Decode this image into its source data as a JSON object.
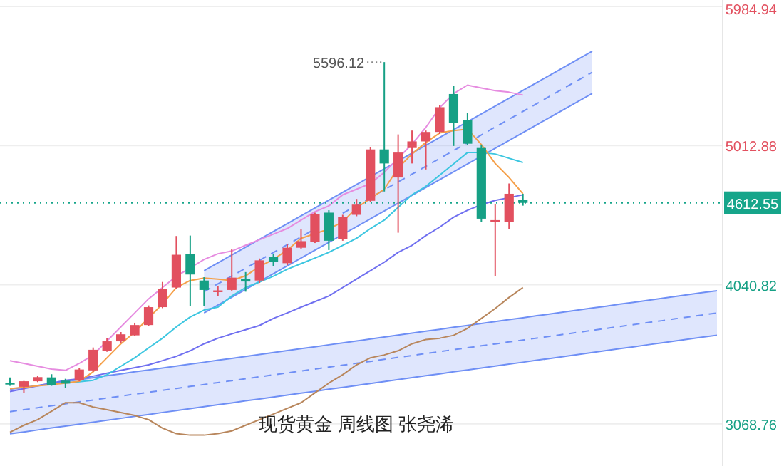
{
  "chart_data": {
    "type": "candlestick",
    "title": "现货黄金 周线图 张尧浠",
    "categories": [
      null,
      null,
      null,
      null,
      null,
      null,
      null,
      null,
      null,
      null,
      null,
      null,
      null,
      null,
      null,
      null,
      null,
      null,
      null,
      null,
      null,
      null,
      null,
      null,
      null,
      null,
      null,
      null,
      null,
      null,
      null,
      null,
      null,
      null,
      null,
      null,
      null,
      null,
      null,
      null,
      null,
      null,
      null,
      null,
      null,
      null,
      null,
      null,
      null,
      null,
      null,
      null
    ],
    "ohlc": [
      [
        3356,
        3393,
        3334,
        3343
      ],
      [
        3327,
        3368,
        3285,
        3366
      ],
      [
        3366,
        3405,
        3360,
        3395
      ],
      [
        3393,
        3415,
        3334,
        3340
      ],
      [
        3370,
        3383,
        3317,
        3350
      ],
      [
        3373,
        3458,
        3366,
        3448
      ],
      [
        3442,
        3602,
        3432,
        3586
      ],
      [
        3579,
        3667,
        3572,
        3645
      ],
      [
        3645,
        3710,
        3635,
        3694
      ],
      [
        3687,
        3775,
        3680,
        3759
      ],
      [
        3759,
        3896,
        3753,
        3884
      ],
      [
        3884,
        4060,
        3877,
        4011
      ],
      [
        4021,
        4381,
        4014,
        4250
      ],
      [
        4257,
        4384,
        3893,
        4112
      ],
      [
        4070,
        4093,
        3890,
        4004
      ],
      [
        3989,
        4031,
        3962,
        4001
      ],
      [
        4004,
        4289,
        3994,
        4090
      ],
      [
        4080,
        4129,
        3992,
        4063
      ],
      [
        4070,
        4224,
        4053,
        4211
      ],
      [
        4237,
        4257,
        4168,
        4201
      ],
      [
        4191,
        4322,
        4178,
        4299
      ],
      [
        4299,
        4430,
        4289,
        4345
      ],
      [
        4342,
        4544,
        4332,
        4532
      ],
      [
        4544,
        4561,
        4283,
        4348
      ],
      [
        4358,
        4529,
        4348,
        4512
      ],
      [
        4529,
        4640,
        4519,
        4600
      ],
      [
        4627,
        5003,
        4617,
        4986
      ],
      [
        4986,
        5596.12,
        4692,
        4888
      ],
      [
        4790,
        5091,
        4404,
        4964
      ],
      [
        4996,
        5118,
        4888,
        5042
      ],
      [
        5042,
        5118,
        4846,
        5108
      ],
      [
        5108,
        5298,
        5094,
        5281
      ],
      [
        5373,
        5428,
        5010,
        5173
      ],
      [
        5190,
        5239,
        5016,
        5026
      ],
      [
        4996,
        5020,
        4480,
        4502
      ],
      [
        4480,
        4603,
        4103,
        4492
      ],
      [
        4480,
        4748,
        4430,
        4676
      ],
      [
        4633,
        4676,
        4593,
        4612.55
      ],
      null,
      null,
      null,
      null,
      null,
      null,
      null,
      null,
      null,
      null,
      null,
      null,
      null,
      null
    ],
    "colors": [
      "#16a085",
      "#e2505f",
      "#e2505f",
      "#16a085",
      "#16a085",
      "#e2505f",
      "#e2505f",
      "#e2505f",
      "#e2505f",
      "#e2505f",
      "#e2505f",
      "#e2505f",
      "#e2505f",
      "#16a085",
      "#16a085",
      "#e2505f",
      "#e2505f",
      "#16a085",
      "#e2505f",
      "#16a085",
      "#e2505f",
      "#e2505f",
      "#e2505f",
      "#16a085",
      "#e2505f",
      "#e2505f",
      "#e2505f",
      "#16a085",
      "#e2505f",
      "#e2505f",
      "#e2505f",
      "#e2505f",
      "#16a085",
      "#16a085",
      "#16a085",
      "#e2505f",
      "#e2505f",
      "#16a085",
      null,
      null,
      null,
      null,
      null,
      null,
      null,
      null,
      null,
      null,
      null,
      null,
      null,
      null
    ],
    "series": [
      {
        "type": "line",
        "line_style": "dashed",
        "color": "#6f8ff5",
        "values": [
          3154,
          3167,
          3181,
          3195,
          3208,
          3222,
          3235,
          3249,
          3262,
          3276,
          3289,
          3303,
          3316,
          3330,
          3343,
          3357,
          3370,
          3384,
          3397,
          3411,
          3424,
          3438,
          3451,
          3465,
          3478,
          3492,
          3505,
          3519,
          3533,
          3546,
          3560,
          3573,
          3587,
          3600,
          3614,
          3627,
          3641,
          3654,
          3668,
          3681,
          3695,
          3708,
          3722,
          3735,
          3749,
          3762,
          3776,
          3789,
          3803,
          3816,
          3830,
          3843
        ],
        "lower": [
          2999,
          3012,
          3026,
          3040,
          3053,
          3067,
          3080,
          3094,
          3107,
          3121,
          3134,
          3148,
          3161,
          3175,
          3188,
          3202,
          3215,
          3229,
          3242,
          3256,
          3269,
          3283,
          3296,
          3310,
          3323,
          3337,
          3350,
          3364,
          3378,
          3391,
          3405,
          3418,
          3432,
          3445,
          3459,
          3472,
          3486,
          3499,
          3513,
          3526,
          3540,
          3553,
          3567,
          3580,
          3594,
          3607,
          3621,
          3634,
          3648,
          3661,
          3675,
          3688
        ],
        "upper": [
          3310,
          3323,
          3337,
          3351,
          3364,
          3378,
          3391,
          3405,
          3418,
          3432,
          3445,
          3459,
          3472,
          3486,
          3499,
          3513,
          3526,
          3540,
          3553,
          3567,
          3580,
          3594,
          3607,
          3621,
          3634,
          3648,
          3661,
          3675,
          3689,
          3702,
          3716,
          3729,
          3743,
          3756,
          3770,
          3783,
          3797,
          3810,
          3824,
          3837,
          3851,
          3864,
          3878,
          3891,
          3905,
          3918,
          3932,
          3945,
          3959,
          3972,
          3986,
          3999
        ]
      },
      {
        "type": "line",
        "line_style": "dashed",
        "color": "#6f8ff5",
        "values": [
          null,
          null,
          null,
          null,
          null,
          null,
          null,
          null,
          null,
          null,
          null,
          null,
          null,
          null,
          3992,
          4047,
          4101,
          4156,
          4211,
          4266,
          4320,
          4375,
          4430,
          null,
          4540,
          4594,
          4649,
          4704,
          4759,
          4813,
          4868,
          4923,
          4978,
          5032,
          5087,
          5142,
          5197,
          5251,
          5306,
          5361,
          5416,
          5470,
          5525,
          null,
          null,
          null,
          null,
          null,
          null,
          null,
          null,
          null
        ],
        "lower": [
          null,
          null,
          null,
          null,
          null,
          null,
          null,
          null,
          null,
          null,
          null,
          null,
          null,
          null,
          3844,
          3899,
          3953,
          4008,
          4063,
          4118,
          4172,
          4227,
          4282,
          4337,
          4392,
          4446,
          4501,
          4556,
          4611,
          4665,
          4720,
          4775,
          4830,
          4884,
          4939,
          4994,
          5049,
          5103,
          5158,
          5213,
          5268,
          5322,
          5377,
          null,
          null,
          null,
          null,
          null,
          null,
          null,
          null,
          null
        ],
        "upper": [
          null,
          null,
          null,
          null,
          null,
          null,
          null,
          null,
          null,
          null,
          null,
          null,
          null,
          null,
          4139,
          4194,
          4248,
          4303,
          4358,
          4413,
          4467,
          4522,
          4577,
          4632,
          4687,
          4741,
          4796,
          4851,
          4906,
          4960,
          5015,
          5070,
          5125,
          5179,
          5234,
          5289,
          5344,
          5398,
          5453,
          5508,
          5563,
          5617,
          5672,
          null,
          null,
          null,
          null,
          null,
          null,
          null,
          null,
          null
        ]
      },
      {
        "type": "line",
        "color": "#6f8ff5",
        "values": [
          3310,
          3323,
          3337,
          3351,
          3364,
          3378,
          3391,
          3405,
          3418,
          3432,
          3445,
          3459,
          3472,
          3486,
          3499,
          3513,
          3526,
          3540,
          3553,
          3567,
          3580,
          3594,
          3607,
          3621,
          3634,
          3648,
          3661,
          3675,
          3689,
          3702,
          3716,
          3729,
          3743,
          3756,
          3770,
          3783,
          3797,
          3810,
          3824,
          3837,
          3851,
          3864,
          3878,
          3891,
          3905,
          3918,
          3932,
          3945,
          3959,
          3972,
          3986,
          3999
        ]
      },
      {
        "type": "line",
        "color": "#6f8ff5",
        "values": [
          2999,
          3012,
          3026,
          3040,
          3053,
          3067,
          3080,
          3094,
          3107,
          3121,
          3134,
          3148,
          3161,
          3175,
          3188,
          3202,
          3215,
          3229,
          3242,
          3256,
          3269,
          3283,
          3296,
          3310,
          3323,
          3337,
          3350,
          3364,
          3378,
          3391,
          3405,
          3418,
          3432,
          3445,
          3459,
          3472,
          3486,
          3499,
          3513,
          3526,
          3540,
          3553,
          3567,
          3580,
          3594,
          3607,
          3621,
          3634,
          3648,
          3661,
          3675,
          3688
        ]
      },
      {
        "type": "line",
        "color": "#6f8ff5",
        "values": [
          null,
          null,
          null,
          null,
          null,
          null,
          null,
          null,
          null,
          null,
          null,
          null,
          null,
          null,
          4139,
          4194,
          4248,
          4303,
          4358,
          4413,
          4467,
          4522,
          4577,
          4632,
          4687,
          4741,
          4796,
          4851,
          4906,
          4960,
          5015,
          5070,
          5125,
          5179,
          5234,
          5289,
          5344,
          5398,
          5453,
          5508,
          5563,
          5617,
          5672,
          null,
          null,
          null,
          null,
          null,
          null,
          null,
          null,
          null
        ]
      },
      {
        "type": "line",
        "color": "#6f8ff5",
        "values": [
          null,
          null,
          null,
          null,
          null,
          null,
          null,
          null,
          null,
          null,
          null,
          null,
          null,
          null,
          3844,
          3899,
          3953,
          4008,
          4063,
          4118,
          4172,
          4227,
          4282,
          4337,
          4392,
          4446,
          4501,
          4556,
          4611,
          4665,
          4720,
          4775,
          4830,
          4884,
          4939,
          4994,
          5049,
          5103,
          5158,
          5213,
          5268,
          5322,
          5377,
          null,
          null,
          null,
          null,
          null,
          null,
          null,
          null,
          null
        ]
      },
      {
        "type": "line",
        "color": "#b8865c",
        "values": [
          3010,
          3059,
          3098,
          3157,
          3216,
          3216,
          3186,
          3167,
          3147,
          3127,
          3098,
          3039,
          3000,
          2990,
          2990,
          3000,
          3019,
          3059,
          3098,
          3137,
          3177,
          3216,
          3285,
          3353,
          3412,
          3481,
          3530,
          3550,
          3579,
          3628,
          3658,
          3667,
          3687,
          3736,
          3805,
          3874,
          3952,
          4021,
          null,
          null,
          null,
          null,
          null,
          null,
          null,
          null,
          null,
          null,
          null,
          null,
          null,
          null
        ]
      },
      {
        "type": "line",
        "color": "#6f6ff0",
        "values": [
          3294,
          3314,
          3334,
          3353,
          3373,
          3383,
          3402,
          3422,
          3442,
          3461,
          3481,
          3510,
          3540,
          3579,
          3628,
          3667,
          3697,
          3726,
          3756,
          3805,
          3844,
          3884,
          3923,
          3962,
          4021,
          4080,
          4139,
          4198,
          4267,
          4316,
          4384,
          4443,
          4512,
          4561,
          4600,
          4630,
          4649,
          4669,
          null,
          null,
          null,
          null,
          null,
          null,
          null,
          null,
          null,
          null,
          null,
          null,
          null,
          null
        ]
      },
      {
        "type": "line",
        "color": "#e68ce0",
        "values": [
          3510,
          3491,
          3471,
          3451,
          3442,
          3491,
          3550,
          3648,
          3746,
          3844,
          3942,
          4021,
          4100,
          4158,
          4217,
          4257,
          4276,
          4316,
          4355,
          4394,
          4433,
          4492,
          4551,
          4591,
          4669,
          4708,
          4748,
          4826,
          4924,
          5023,
          5140,
          5278,
          5376,
          5435,
          5415,
          5396,
          5386,
          5366,
          null,
          null,
          null,
          null,
          null,
          null,
          null,
          null,
          null,
          null,
          null,
          null,
          null,
          null
        ]
      },
      {
        "type": "line",
        "color": "#3cc6e0",
        "values": [
          null,
          null,
          null,
          null,
          3353,
          3363,
          3373,
          3412,
          3471,
          3530,
          3599,
          3667,
          3746,
          3815,
          3864,
          3884,
          3962,
          4021,
          4060,
          4100,
          4149,
          4188,
          4227,
          4267,
          4316,
          4365,
          4433,
          4492,
          4581,
          4669,
          4728,
          4807,
          4885,
          4964,
          4964,
          4954,
          4924,
          4895,
          null,
          null,
          null,
          null,
          null,
          null,
          null,
          null,
          null,
          null,
          null,
          null,
          null,
          null
        ]
      },
      {
        "type": "line",
        "color": "#f5a04a",
        "values": [
          3314,
          3324,
          3334,
          3343,
          3353,
          3366,
          3432,
          3530,
          3628,
          3710,
          3808,
          3906,
          4021,
          4070,
          4087,
          4080,
          4070,
          4103,
          4168,
          4217,
          4283,
          4365,
          4397,
          4430,
          4480,
          4578,
          4643,
          4708,
          4856,
          4954,
          5035,
          5101,
          5118,
          5128,
          5020,
          4888,
          4790,
          4676,
          null,
          null,
          null,
          null,
          null,
          null,
          null,
          null,
          null,
          null,
          null,
          null,
          null,
          null
        ]
      }
    ],
    "annotations": [
      "5596.12"
    ],
    "ref_lines": [
      {
        "axis": "y",
        "value": 4612.55,
        "label": "4612.55",
        "color": "#16a58a",
        "line_style": "dotted"
      }
    ],
    "ylim": [
      2774,
      6030
    ],
    "yticks": [
      3068.76,
      4040.82,
      5012.88,
      5984.94
    ],
    "grid": "y"
  }
}
